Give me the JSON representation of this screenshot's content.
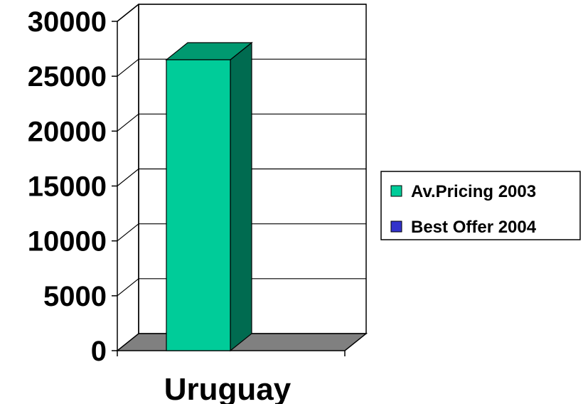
{
  "chart_data": {
    "type": "bar",
    "categories": [
      "Uruguay"
    ],
    "series": [
      {
        "name": "Av.Pricing 2003",
        "values": [
          26500
        ],
        "color": "#00CC99",
        "side_color": "#006B50",
        "top_color": "#009970"
      },
      {
        "name": "Best Offer 2004",
        "values": [
          0
        ],
        "color": "#3333CC"
      }
    ],
    "yticks": [
      "0",
      "5000",
      "10000",
      "15000",
      "20000",
      "25000",
      "30000"
    ],
    "ylim": [
      0,
      30000
    ],
    "grid": true,
    "legend_position": "right",
    "three_d": true,
    "floor_color": "#808080"
  }
}
